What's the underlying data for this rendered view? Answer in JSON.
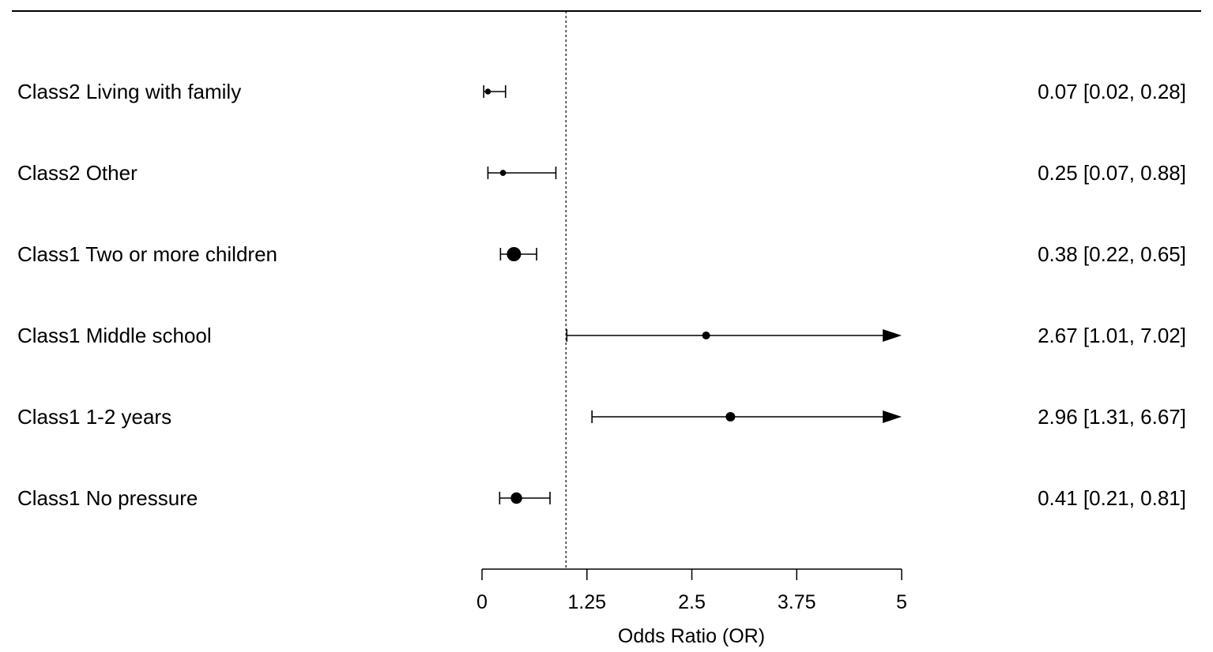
{
  "chart_data": {
    "type": "forest",
    "xlabel": "Odds Ratio (OR)",
    "xlim": [
      0,
      5
    ],
    "ticks": [
      0,
      1.25,
      2.5,
      3.75,
      5
    ],
    "tick_labels": [
      "0",
      "1.25",
      "2.5",
      "3.75",
      "5"
    ],
    "reference_line": 1,
    "rows": [
      {
        "label": "Class2 Living with family",
        "or": 0.07,
        "lower": 0.02,
        "upper": 0.28,
        "ci_text": "0.07 [0.02, 0.28]"
      },
      {
        "label": "Class2 Other",
        "or": 0.25,
        "lower": 0.07,
        "upper": 0.88,
        "ci_text": "0.25 [0.07, 0.88]"
      },
      {
        "label": "Class1 Two or more children",
        "or": 0.38,
        "lower": 0.22,
        "upper": 0.65,
        "ci_text": "0.38 [0.22, 0.65]"
      },
      {
        "label": "Class1 Middle school",
        "or": 2.67,
        "lower": 1.01,
        "upper": 7.02,
        "ci_text": "2.67 [1.01, 7.02]"
      },
      {
        "label": "Class1 1-2 years",
        "or": 2.96,
        "lower": 1.31,
        "upper": 6.67,
        "ci_text": "2.96 [1.31, 6.67]"
      },
      {
        "label": "Class1 No pressure",
        "or": 0.41,
        "lower": 0.21,
        "upper": 0.81,
        "ci_text": "0.41 [0.21, 0.81]"
      }
    ]
  }
}
